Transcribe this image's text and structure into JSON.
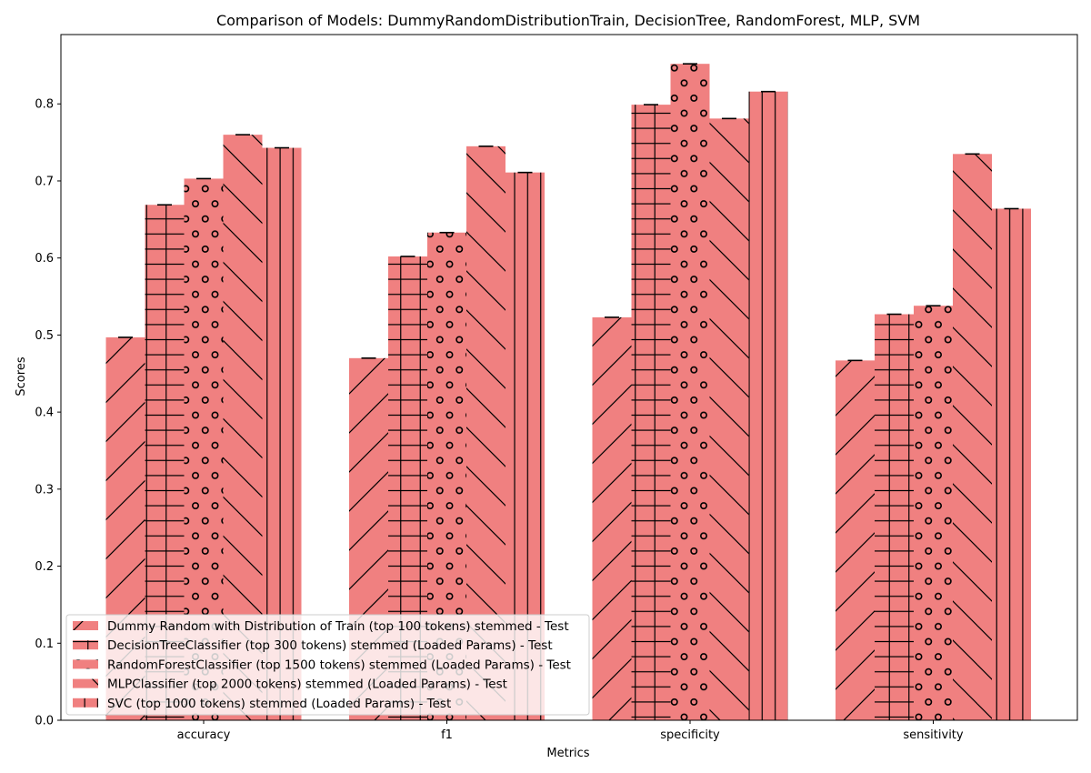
{
  "chart_data": {
    "type": "bar",
    "title": "Comparison of Models: DummyRandomDistributionTrain, DecisionTree, RandomForest, MLP, SVM",
    "xlabel": "Metrics",
    "ylabel": "Scores",
    "categories": [
      "accuracy",
      "f1",
      "specificity",
      "sensitivity"
    ],
    "ylim": [
      0,
      0.89
    ],
    "yticks": [
      0.0,
      0.1,
      0.2,
      0.3,
      0.4,
      0.5,
      0.6,
      0.7,
      0.8
    ],
    "ytick_labels": [
      "0.0",
      "0.1",
      "0.2",
      "0.3",
      "0.4",
      "0.5",
      "0.6",
      "0.7",
      "0.8"
    ],
    "grid": false,
    "legend_position": "lower-left",
    "bar_color": "#f08080",
    "hatch_color": "#000000",
    "series": [
      {
        "name": "Dummy Random with Distribution of Train (top 100 tokens) stemmed - Test",
        "hatch": "/",
        "values": [
          0.497,
          0.47,
          0.523,
          0.467
        ]
      },
      {
        "name": "DecisionTreeClassifier (top 300 tokens) stemmed (Loaded Params) - Test",
        "hatch": "+",
        "values": [
          0.669,
          0.602,
          0.799,
          0.527
        ]
      },
      {
        "name": "RandomForestClassifier (top 1500 tokens) stemmed (Loaded Params) - Test",
        "hatch": "o",
        "values": [
          0.703,
          0.633,
          0.852,
          0.538
        ]
      },
      {
        "name": "MLPClassifier (top 2000 tokens) stemmed (Loaded Params) - Test",
        "hatch": "\\",
        "values": [
          0.76,
          0.745,
          0.781,
          0.735
        ]
      },
      {
        "name": "SVC (top 1000 tokens) stemmed (Loaded Params) - Test",
        "hatch": "|",
        "values": [
          0.743,
          0.711,
          0.816,
          0.664
        ]
      }
    ]
  }
}
